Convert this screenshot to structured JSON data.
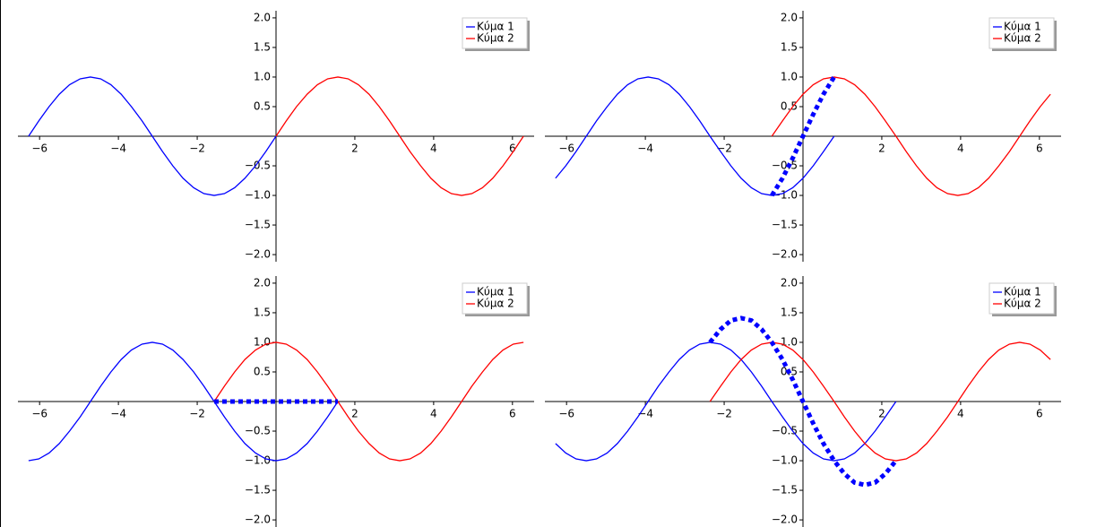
{
  "chart_data": [
    {
      "type": "line",
      "legend": "upper right",
      "xlim": [
        -6.55,
        6.55
      ],
      "ylim": [
        -2.12,
        2.12
      ],
      "xticks": [
        {
          "value": -6,
          "label": "−6"
        },
        {
          "value": -4,
          "label": "−4"
        },
        {
          "value": -2,
          "label": "−2"
        },
        2,
        4,
        6
      ],
      "yticks": [
        {
          "value": -2,
          "label": "−2.0"
        },
        {
          "value": -1.5,
          "label": "−1.5"
        },
        {
          "value": -1,
          "label": "−1.0"
        },
        {
          "value": -0.5,
          "label": "−0.5"
        },
        {
          "value": 0.5,
          "label": "0.5"
        },
        {
          "value": 1,
          "label": "1.0"
        },
        {
          "value": 1.5,
          "label": "1.5"
        },
        {
          "value": 2,
          "label": "2.0"
        }
      ],
      "x": [
        -6.28,
        -6.02,
        -5.76,
        -5.5,
        -5.24,
        -4.97,
        -4.71,
        -4.45,
        -4.19,
        -3.93,
        -3.67,
        -3.4,
        -3.14,
        -2.88,
        -2.62,
        -2.36,
        -2.09,
        -1.83,
        -1.57,
        -1.31,
        -1.05,
        -0.79,
        -0.52,
        -0.26,
        0,
        0.26,
        0.52,
        0.79,
        1.05,
        1.31,
        1.57,
        1.83,
        2.09,
        2.36,
        2.62,
        2.88,
        3.14,
        3.4,
        3.67,
        3.93,
        4.19,
        4.45,
        4.71,
        4.97,
        5.24,
        5.5,
        5.76,
        6.02,
        6.28
      ],
      "series": [
        {
          "name": "Κύμα 1",
          "color": "#0000ff",
          "values": [
            0,
            0.26,
            0.5,
            0.71,
            0.87,
            0.97,
            1,
            0.97,
            0.87,
            0.71,
            0.5,
            0.26,
            0,
            -0.26,
            -0.5,
            -0.71,
            -0.87,
            -0.97,
            -1,
            -0.97,
            -0.87,
            -0.71,
            -0.5,
            -0.26,
            0,
            null,
            null,
            null,
            null,
            null,
            null,
            null,
            null,
            null,
            null,
            null,
            null,
            null,
            null,
            null,
            null,
            null,
            null,
            null,
            null,
            null,
            null,
            null,
            null
          ]
        },
        {
          "name": "Κύμα 2",
          "color": "#ff0000",
          "values": [
            null,
            null,
            null,
            null,
            null,
            null,
            null,
            null,
            null,
            null,
            null,
            null,
            null,
            null,
            null,
            null,
            null,
            null,
            null,
            null,
            null,
            null,
            null,
            null,
            0,
            0.26,
            0.5,
            0.71,
            0.87,
            0.97,
            1,
            0.97,
            0.87,
            0.71,
            0.5,
            0.26,
            0,
            -0.26,
            -0.5,
            -0.71,
            -0.87,
            -0.97,
            -1,
            -0.97,
            -0.87,
            -0.71,
            -0.5,
            -0.26,
            0
          ]
        }
      ]
    },
    {
      "type": "line",
      "legend": "upper right",
      "xlim": [
        -6.55,
        6.55
      ],
      "ylim": [
        -2.12,
        2.12
      ],
      "xticks": [
        {
          "value": -6,
          "label": "−6"
        },
        {
          "value": -4,
          "label": "−4"
        },
        {
          "value": -2,
          "label": "−2"
        },
        2,
        4,
        6
      ],
      "yticks": [
        {
          "value": -2,
          "label": "−2.0"
        },
        {
          "value": -1.5,
          "label": "−1.5"
        },
        {
          "value": -1,
          "label": "−1.0"
        },
        {
          "value": -0.5,
          "label": "−0.5"
        },
        {
          "value": 0.5,
          "label": "0.5"
        },
        {
          "value": 1,
          "label": "1.0"
        },
        {
          "value": 1.5,
          "label": "1.5"
        },
        {
          "value": 2,
          "label": "2.0"
        }
      ],
      "x": [
        -6.28,
        -6.02,
        -5.76,
        -5.5,
        -5.24,
        -4.97,
        -4.71,
        -4.45,
        -4.19,
        -3.93,
        -3.67,
        -3.4,
        -3.14,
        -2.88,
        -2.62,
        -2.36,
        -2.09,
        -1.83,
        -1.57,
        -1.31,
        -1.05,
        -0.79,
        -0.52,
        -0.26,
        0,
        0.26,
        0.52,
        0.79,
        1.05,
        1.31,
        1.57,
        1.83,
        2.09,
        2.36,
        2.62,
        2.88,
        3.14,
        3.4,
        3.67,
        3.93,
        4.19,
        4.45,
        4.71,
        4.97,
        5.24,
        5.5,
        5.76,
        6.02,
        6.28
      ],
      "series": [
        {
          "name": "Κύμα 1",
          "color": "#0000ff",
          "values": [
            -0.71,
            -0.5,
            -0.26,
            0,
            0.26,
            0.5,
            0.71,
            0.87,
            0.97,
            1,
            0.97,
            0.87,
            0.71,
            0.5,
            0.26,
            0,
            -0.26,
            -0.5,
            -0.71,
            -0.87,
            -0.97,
            -1,
            -0.97,
            -0.87,
            -0.71,
            -0.5,
            -0.26,
            0,
            null,
            null,
            null,
            null,
            null,
            null,
            null,
            null,
            null,
            null,
            null,
            null,
            null,
            null,
            null,
            null,
            null,
            null,
            null,
            null,
            null
          ]
        },
        {
          "name": "Κύμα 2",
          "color": "#ff0000",
          "values": [
            null,
            null,
            null,
            null,
            null,
            null,
            null,
            null,
            null,
            null,
            null,
            null,
            null,
            null,
            null,
            null,
            null,
            null,
            null,
            null,
            null,
            0,
            0.26,
            0.5,
            0.71,
            0.87,
            0.97,
            1,
            0.97,
            0.87,
            0.71,
            0.5,
            0.26,
            0,
            -0.26,
            -0.5,
            -0.71,
            -0.87,
            -0.97,
            -1,
            -0.97,
            -0.87,
            -0.71,
            -0.5,
            -0.26,
            0,
            0.26,
            0.5,
            0.71
          ]
        },
        {
          "color": "#0000ff",
          "style": "dotted",
          "values": [
            null,
            null,
            null,
            null,
            null,
            null,
            null,
            null,
            null,
            null,
            null,
            null,
            null,
            null,
            null,
            null,
            null,
            null,
            null,
            null,
            null,
            -1,
            -0.71,
            -0.37,
            0,
            0.37,
            0.71,
            1,
            null,
            null,
            null,
            null,
            null,
            null,
            null,
            null,
            null,
            null,
            null,
            null,
            null,
            null,
            null,
            null,
            null,
            null,
            null,
            null,
            null
          ]
        }
      ]
    },
    {
      "type": "line",
      "legend": "upper right",
      "xlim": [
        -6.55,
        6.55
      ],
      "ylim": [
        -2.12,
        2.12
      ],
      "xticks": [
        {
          "value": -6,
          "label": "−6"
        },
        {
          "value": -4,
          "label": "−4"
        },
        {
          "value": -2,
          "label": "−2"
        },
        2,
        4,
        6
      ],
      "yticks": [
        {
          "value": -2,
          "label": "−2.0"
        },
        {
          "value": -1.5,
          "label": "−1.5"
        },
        {
          "value": -1,
          "label": "−1.0"
        },
        {
          "value": -0.5,
          "label": "−0.5"
        },
        {
          "value": 0.5,
          "label": "0.5"
        },
        {
          "value": 1,
          "label": "1.0"
        },
        {
          "value": 1.5,
          "label": "1.5"
        },
        {
          "value": 2,
          "label": "2.0"
        }
      ],
      "x": [
        -6.28,
        -6.02,
        -5.76,
        -5.5,
        -5.24,
        -4.97,
        -4.71,
        -4.45,
        -4.19,
        -3.93,
        -3.67,
        -3.4,
        -3.14,
        -2.88,
        -2.62,
        -2.36,
        -2.09,
        -1.83,
        -1.57,
        -1.31,
        -1.05,
        -0.79,
        -0.52,
        -0.26,
        0,
        0.26,
        0.52,
        0.79,
        1.05,
        1.31,
        1.57,
        1.83,
        2.09,
        2.36,
        2.62,
        2.88,
        3.14,
        3.4,
        3.67,
        3.93,
        4.19,
        4.45,
        4.71,
        4.97,
        5.24,
        5.5,
        5.76,
        6.02,
        6.28
      ],
      "series": [
        {
          "name": "Κύμα 1",
          "color": "#0000ff",
          "values": [
            -1,
            -0.97,
            -0.87,
            -0.71,
            -0.5,
            -0.26,
            0,
            0.26,
            0.5,
            0.71,
            0.87,
            0.97,
            1,
            0.97,
            0.87,
            0.71,
            0.5,
            0.26,
            0,
            -0.26,
            -0.5,
            -0.71,
            -0.87,
            -0.97,
            -1,
            -0.97,
            -0.87,
            -0.71,
            -0.5,
            -0.26,
            0,
            null,
            null,
            null,
            null,
            null,
            null,
            null,
            null,
            null,
            null,
            null,
            null,
            null,
            null,
            null,
            null,
            null,
            null
          ]
        },
        {
          "name": "Κύμα 2",
          "color": "#ff0000",
          "values": [
            null,
            null,
            null,
            null,
            null,
            null,
            null,
            null,
            null,
            null,
            null,
            null,
            null,
            null,
            null,
            null,
            null,
            null,
            0,
            0.26,
            0.5,
            0.71,
            0.87,
            0.97,
            1,
            0.97,
            0.87,
            0.71,
            0.5,
            0.26,
            0,
            -0.26,
            -0.5,
            -0.71,
            -0.87,
            -0.97,
            -1,
            -0.97,
            -0.87,
            -0.71,
            -0.5,
            -0.26,
            0,
            0.26,
            0.5,
            0.71,
            0.87,
            0.97,
            1
          ]
        },
        {
          "color": "#0000ff",
          "style": "dotted",
          "values": [
            null,
            null,
            null,
            null,
            null,
            null,
            null,
            null,
            null,
            null,
            null,
            null,
            null,
            null,
            null,
            null,
            null,
            null,
            0,
            0,
            0,
            0,
            0,
            0,
            0,
            0,
            0,
            0,
            0,
            0,
            0,
            null,
            null,
            null,
            null,
            null,
            null,
            null,
            null,
            null,
            null,
            null,
            null,
            null,
            null,
            null,
            null,
            null,
            null
          ]
        }
      ]
    },
    {
      "type": "line",
      "legend": "upper right",
      "xlim": [
        -6.55,
        6.55
      ],
      "ylim": [
        -2.12,
        2.12
      ],
      "xticks": [
        {
          "value": -6,
          "label": "−6"
        },
        {
          "value": -4,
          "label": "−4"
        },
        {
          "value": -2,
          "label": "−2"
        },
        2,
        4,
        6
      ],
      "yticks": [
        {
          "value": -2,
          "label": "−2.0"
        },
        {
          "value": -1.5,
          "label": "−1.5"
        },
        {
          "value": -1,
          "label": "−1.0"
        },
        {
          "value": -0.5,
          "label": "−0.5"
        },
        {
          "value": 0.5,
          "label": "0.5"
        },
        {
          "value": 1,
          "label": "1.0"
        },
        {
          "value": 1.5,
          "label": "1.5"
        },
        {
          "value": 2,
          "label": "2.0"
        }
      ],
      "x": [
        -6.28,
        -6.02,
        -5.76,
        -5.5,
        -5.24,
        -4.97,
        -4.71,
        -4.45,
        -4.19,
        -3.93,
        -3.67,
        -3.4,
        -3.14,
        -2.88,
        -2.62,
        -2.36,
        -2.09,
        -1.83,
        -1.57,
        -1.31,
        -1.05,
        -0.79,
        -0.52,
        -0.26,
        0,
        0.26,
        0.52,
        0.79,
        1.05,
        1.31,
        1.57,
        1.83,
        2.09,
        2.36,
        2.62,
        2.88,
        3.14,
        3.4,
        3.67,
        3.93,
        4.19,
        4.45,
        4.71,
        4.97,
        5.24,
        5.5,
        5.76,
        6.02,
        6.28
      ],
      "series": [
        {
          "name": "Κύμα 1",
          "color": "#0000ff",
          "values": [
            -0.71,
            -0.87,
            -0.97,
            -1,
            -0.97,
            -0.87,
            -0.71,
            -0.5,
            -0.26,
            0,
            0.26,
            0.5,
            0.71,
            0.87,
            0.97,
            1,
            0.97,
            0.87,
            0.71,
            0.5,
            0.26,
            0,
            -0.26,
            -0.5,
            -0.71,
            -0.87,
            -0.97,
            -1,
            -0.97,
            -0.87,
            -0.71,
            -0.5,
            -0.26,
            0,
            null,
            null,
            null,
            null,
            null,
            null,
            null,
            null,
            null,
            null,
            null,
            null,
            null,
            null,
            null
          ]
        },
        {
          "name": "Κύμα 2",
          "color": "#ff0000",
          "values": [
            null,
            null,
            null,
            null,
            null,
            null,
            null,
            null,
            null,
            null,
            null,
            null,
            null,
            null,
            null,
            0,
            0.26,
            0.5,
            0.71,
            0.87,
            0.97,
            1,
            0.97,
            0.87,
            0.71,
            0.5,
            0.26,
            0,
            -0.26,
            -0.5,
            -0.71,
            -0.87,
            -0.97,
            -1,
            -0.97,
            -0.87,
            -0.71,
            -0.5,
            -0.26,
            0,
            0.26,
            0.5,
            0.71,
            0.87,
            0.97,
            1,
            0.97,
            0.87,
            0.71
          ]
        },
        {
          "color": "#0000ff",
          "style": "dotted",
          "values": [
            null,
            null,
            null,
            null,
            null,
            null,
            null,
            null,
            null,
            null,
            null,
            null,
            null,
            null,
            null,
            1,
            1.22,
            1.37,
            1.41,
            1.37,
            1.22,
            1,
            0.71,
            0.37,
            0,
            -0.37,
            -0.71,
            -1,
            -1.22,
            -1.37,
            -1.41,
            -1.37,
            -1.22,
            -1,
            null,
            null,
            null,
            null,
            null,
            null,
            null,
            null,
            null,
            null,
            null,
            null,
            null,
            null,
            null
          ]
        }
      ]
    }
  ]
}
